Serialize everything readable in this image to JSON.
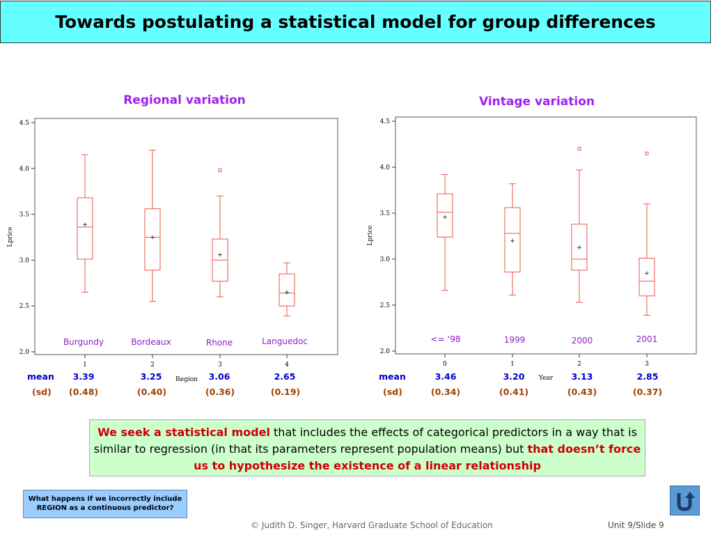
{
  "title": "Towards postulating a statistical model for group differences",
  "chart_data": [
    {
      "type": "box",
      "title": "Regional variation",
      "xlabel": "Region",
      "ylabel": "Lprice",
      "ylim": [
        2.0,
        4.5
      ],
      "yticks": [
        "2.0",
        "2.5",
        "3.0",
        "3.5",
        "4.0",
        "4.5"
      ],
      "ytick_values": [
        2.0,
        2.5,
        3.0,
        3.5,
        4.0,
        4.5
      ],
      "xticks": [
        "1",
        "2",
        "3",
        "4"
      ],
      "categories": [
        "Burgundy",
        "Bordeaux",
        "Rhone",
        "Languedoc"
      ],
      "boxes": [
        {
          "min": 2.65,
          "q1": 3.01,
          "median": 3.36,
          "q3": 3.68,
          "max": 4.15,
          "mean": 3.39,
          "outliers": []
        },
        {
          "min": 2.55,
          "q1": 2.89,
          "median": 3.25,
          "q3": 3.56,
          "max": 4.2,
          "mean": 3.25,
          "outliers": []
        },
        {
          "min": 2.6,
          "q1": 2.77,
          "median": 3.0,
          "q3": 3.23,
          "max": 3.7,
          "mean": 3.06,
          "outliers": [
            3.98
          ]
        },
        {
          "min": 2.39,
          "q1": 2.5,
          "median": 2.64,
          "q3": 2.85,
          "max": 2.97,
          "mean": 2.65,
          "outliers": []
        }
      ],
      "mean_label": "mean",
      "sd_label": "(sd)",
      "means": [
        "3.39",
        "3.25",
        "3.06",
        "2.65"
      ],
      "sds": [
        "(0.48)",
        "(0.40)",
        "(0.36)",
        "(0.19)"
      ]
    },
    {
      "type": "box",
      "title": "Vintage variation",
      "xlabel": "Year",
      "ylabel": "Lprice",
      "ylim": [
        2.0,
        4.5
      ],
      "yticks": [
        "2.0",
        "2.5",
        "3.0",
        "3.5",
        "4.0",
        "4.5"
      ],
      "ytick_values": [
        2.0,
        2.5,
        3.0,
        3.5,
        4.0,
        4.5
      ],
      "xticks": [
        "0",
        "1",
        "2",
        "3"
      ],
      "categories": [
        "<= ‘98",
        "1999",
        "2000",
        "2001"
      ],
      "boxes": [
        {
          "min": 2.66,
          "q1": 3.24,
          "median": 3.51,
          "q3": 3.71,
          "max": 3.92,
          "mean": 3.46,
          "outliers": []
        },
        {
          "min": 2.61,
          "q1": 2.86,
          "median": 3.28,
          "q3": 3.56,
          "max": 3.82,
          "mean": 3.2,
          "outliers": []
        },
        {
          "min": 2.53,
          "q1": 2.88,
          "median": 3.0,
          "q3": 3.38,
          "max": 3.97,
          "mean": 3.13,
          "outliers": [
            4.2
          ]
        },
        {
          "min": 2.39,
          "q1": 2.6,
          "median": 2.76,
          "q3": 3.01,
          "max": 3.6,
          "mean": 2.85,
          "outliers": [
            4.15
          ]
        }
      ],
      "mean_label": "mean",
      "sd_label": "(sd)",
      "means": [
        "3.46",
        "3.20",
        "3.13",
        "2.85"
      ],
      "sds": [
        "(0.34)",
        "(0.41)",
        "(0.43)",
        "(0.37)"
      ]
    }
  ],
  "callout": {
    "part1": "We seek a statistical model",
    "part2": " that includes the effects of categorical predictors in a way that is similar to regression (in that its parameters represent population means) but ",
    "part3": "that doesn’t force us to hypothesize the existence of a linear relationship"
  },
  "question": "What happens if we incorrectly include REGION as a continuous predictor?",
  "footer": {
    "credit": "© Judith D. Singer, Harvard Graduate School of Education",
    "slide": "Unit 9/Slide 9"
  },
  "colors": {
    "box": "#e8574d",
    "category_label": "#8b1fc7",
    "mean_text": "#0000cc",
    "sd_text": "#a04000"
  },
  "icons": {
    "nav": "return-arrow-icon"
  }
}
